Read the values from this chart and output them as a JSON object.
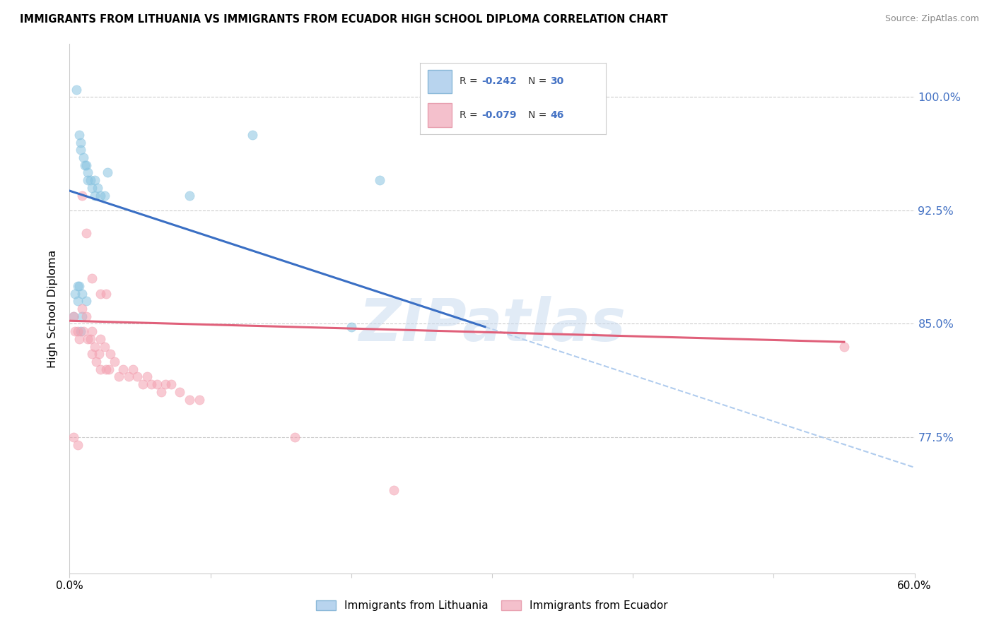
{
  "title": "IMMIGRANTS FROM LITHUANIA VS IMMIGRANTS FROM ECUADOR HIGH SCHOOL DIPLOMA CORRELATION CHART",
  "source": "Source: ZipAtlas.com",
  "ylabel": "High School Diploma",
  "yticks": [
    0.775,
    0.85,
    0.925,
    1.0
  ],
  "ytick_labels": [
    "77.5%",
    "85.0%",
    "92.5%",
    "100.0%"
  ],
  "xmin": 0.0,
  "xmax": 0.6,
  "ymin": 0.685,
  "ymax": 1.035,
  "watermark": "ZIPatlas",
  "lithuania_x": [
    0.005,
    0.007,
    0.008,
    0.008,
    0.01,
    0.011,
    0.012,
    0.013,
    0.013,
    0.015,
    0.016,
    0.018,
    0.018,
    0.02,
    0.022,
    0.025,
    0.027,
    0.003,
    0.004,
    0.006,
    0.006,
    0.007,
    0.009,
    0.009,
    0.012,
    0.085,
    0.13,
    0.22,
    0.008,
    0.2
  ],
  "lithuania_y": [
    1.005,
    0.975,
    0.97,
    0.965,
    0.96,
    0.955,
    0.955,
    0.95,
    0.945,
    0.945,
    0.94,
    0.945,
    0.935,
    0.94,
    0.935,
    0.935,
    0.95,
    0.855,
    0.87,
    0.865,
    0.875,
    0.875,
    0.855,
    0.87,
    0.865,
    0.935,
    0.975,
    0.945,
    0.845,
    0.848
  ],
  "ecuador_x": [
    0.003,
    0.004,
    0.006,
    0.007,
    0.009,
    0.01,
    0.012,
    0.013,
    0.015,
    0.016,
    0.016,
    0.018,
    0.019,
    0.021,
    0.022,
    0.022,
    0.025,
    0.026,
    0.028,
    0.029,
    0.032,
    0.035,
    0.038,
    0.042,
    0.045,
    0.048,
    0.052,
    0.055,
    0.058,
    0.062,
    0.065,
    0.068,
    0.072,
    0.078,
    0.085,
    0.092,
    0.003,
    0.006,
    0.009,
    0.012,
    0.016,
    0.022,
    0.026,
    0.16,
    0.23,
    0.55
  ],
  "ecuador_y": [
    0.855,
    0.845,
    0.845,
    0.84,
    0.86,
    0.845,
    0.855,
    0.84,
    0.84,
    0.83,
    0.845,
    0.835,
    0.825,
    0.83,
    0.82,
    0.84,
    0.835,
    0.82,
    0.82,
    0.83,
    0.825,
    0.815,
    0.82,
    0.815,
    0.82,
    0.815,
    0.81,
    0.815,
    0.81,
    0.81,
    0.805,
    0.81,
    0.81,
    0.805,
    0.8,
    0.8,
    0.775,
    0.77,
    0.935,
    0.91,
    0.88,
    0.87,
    0.87,
    0.775,
    0.74,
    0.835
  ],
  "blue_line_x": [
    0.0,
    0.295
  ],
  "blue_line_y": [
    0.938,
    0.848
  ],
  "pink_line_x": [
    0.0,
    0.55
  ],
  "pink_line_y": [
    0.852,
    0.838
  ],
  "dash_line_x": [
    0.0,
    0.6
  ],
  "dash_line_y": [
    0.938,
    0.755
  ],
  "blue_scatter_color": "#89c4e1",
  "pink_scatter_color": "#f4a0b0",
  "blue_line_color": "#3a6fc4",
  "pink_line_color": "#e0607a",
  "dash_line_color": "#b0ccee",
  "legend_R_blue": "-0.242",
  "legend_N_blue": "30",
  "legend_R_pink": "-0.079",
  "legend_N_pink": "46",
  "label_color_blue": "#4472c4",
  "label_color_pink": "#e87090"
}
